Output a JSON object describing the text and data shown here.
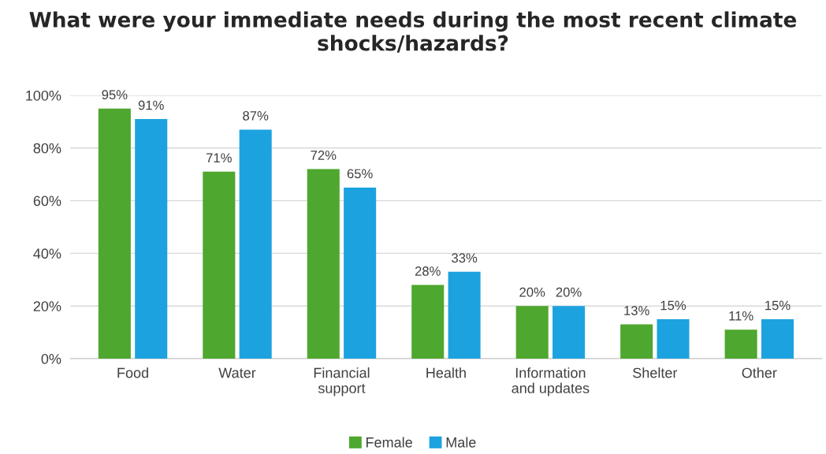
{
  "chart_data": {
    "type": "bar",
    "title": "What were your immediate needs during the most recent climate shocks/hazards?",
    "categories": [
      "Food",
      "Water",
      "Financial\nsupport",
      "Health",
      "Information\nand updates",
      "Shelter",
      "Other"
    ],
    "series": [
      {
        "name": "Female",
        "color": "#4ea72e",
        "values": [
          95,
          71,
          72,
          28,
          20,
          13,
          11
        ],
        "value_labels": [
          "95%",
          "71%",
          "72%",
          "28%",
          "20%",
          "13%",
          "11%"
        ]
      },
      {
        "name": "Male",
        "color": "#1ca3df",
        "values": [
          91,
          87,
          65,
          33,
          20,
          15,
          15
        ],
        "value_labels": [
          "91%",
          "87%",
          "65%",
          "33%",
          "20%",
          "15%",
          "15%"
        ]
      }
    ],
    "ylim": [
      0,
      100
    ],
    "yticks": [
      {
        "value": 0,
        "label": "0%"
      },
      {
        "value": 20,
        "label": "20%"
      },
      {
        "value": 40,
        "label": "40%"
      },
      {
        "value": 60,
        "label": "60%"
      },
      {
        "value": 80,
        "label": "80%"
      },
      {
        "value": 100,
        "label": "100%"
      }
    ],
    "grid": "y",
    "legend": "bottom"
  }
}
